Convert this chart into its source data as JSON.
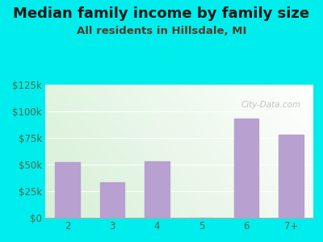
{
  "title": "Median family income by family size",
  "subtitle": "All residents in Hillsdale, MI",
  "categories": [
    "2",
    "3",
    "4",
    "5",
    "6",
    "7+"
  ],
  "values": [
    52000,
    33000,
    53000,
    0,
    93000,
    78000
  ],
  "bar_color": "#b8a0d0",
  "background_color": "#00eded",
  "plot_bg_color_topleft": "#cce8cc",
  "plot_bg_color_topright": "#f0fff0",
  "plot_bg_color_bottomleft": "#d8eed8",
  "plot_bg_color_bottomright": "#ffffff",
  "title_color": "#1a1a1a",
  "subtitle_color": "#5a3a2a",
  "axis_label_color": "#4a6a4a",
  "ylim": [
    0,
    125000
  ],
  "yticks": [
    0,
    25000,
    50000,
    75000,
    100000,
    125000
  ],
  "ytick_labels": [
    "$0",
    "$25k",
    "$50k",
    "$75k",
    "$100k",
    "$125k"
  ],
  "watermark": "City-Data.com",
  "title_fontsize": 13,
  "subtitle_fontsize": 9.5,
  "tick_fontsize": 8.5
}
